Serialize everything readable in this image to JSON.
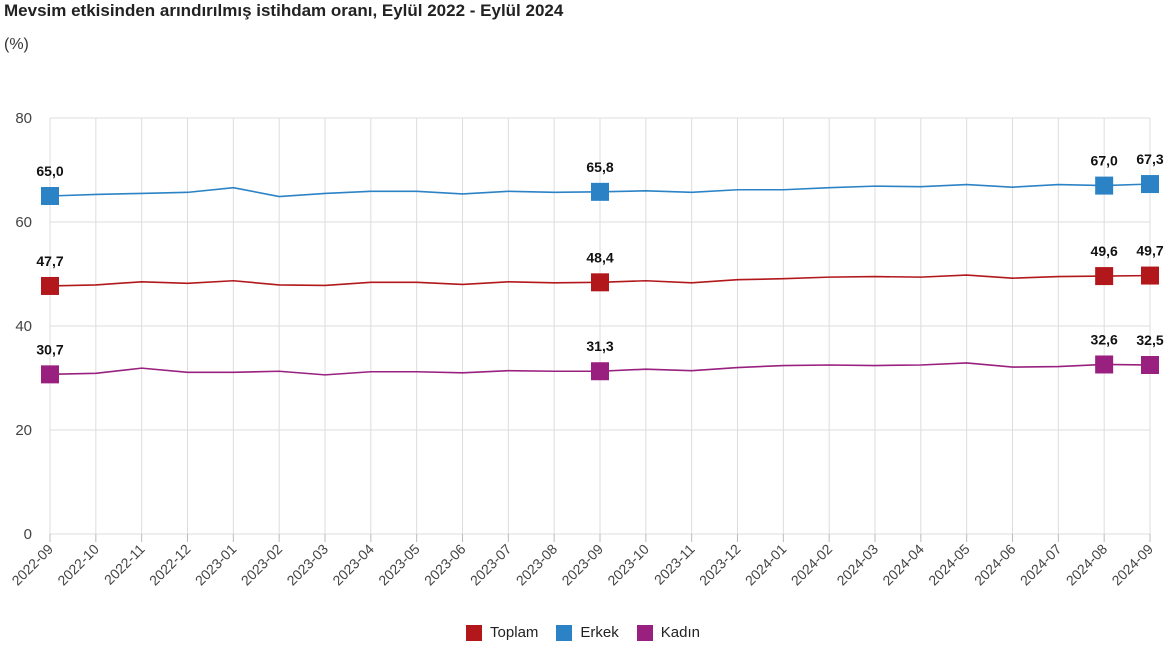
{
  "title": "Mevsim etkisinden arındırılmış istihdam oranı, Eylül 2022 - Eylül 2024",
  "subtitle": "(%)",
  "chart_data": {
    "type": "line",
    "title": "Mevsim etkisinden arındırılmış istihdam oranı, Eylül 2022 - Eylül 2024",
    "ylabel": "(%)",
    "ylim": [
      0,
      80
    ],
    "yticks": [
      0,
      20,
      40,
      60,
      80
    ],
    "grid": true,
    "legend_position": "bottom-center",
    "x": [
      "2022-09",
      "2022-10",
      "2022-11",
      "2022-12",
      "2023-01",
      "2023-02",
      "2023-03",
      "2023-04",
      "2023-05",
      "2023-06",
      "2023-07",
      "2023-08",
      "2023-09",
      "2023-10",
      "2023-11",
      "2023-12",
      "2024-01",
      "2024-02",
      "2024-03",
      "2024-04",
      "2024-05",
      "2024-06",
      "2024-07",
      "2024-08",
      "2024-09"
    ],
    "series": [
      {
        "name": "Toplam",
        "color": "#b2181b",
        "values": [
          47.7,
          47.9,
          48.5,
          48.2,
          48.7,
          47.9,
          47.8,
          48.4,
          48.4,
          48.0,
          48.5,
          48.3,
          48.4,
          48.7,
          48.3,
          48.9,
          49.1,
          49.4,
          49.5,
          49.4,
          49.8,
          49.2,
          49.5,
          49.6,
          49.7
        ],
        "marker_labels": {
          "0": "47,7",
          "12": "48,4",
          "23": "49,6",
          "24": "49,7"
        }
      },
      {
        "name": "Erkek",
        "color": "#2b83c6",
        "values": [
          65.0,
          65.3,
          65.5,
          65.7,
          66.6,
          64.9,
          65.5,
          65.9,
          65.9,
          65.4,
          65.9,
          65.7,
          65.8,
          66.0,
          65.7,
          66.2,
          66.2,
          66.6,
          66.9,
          66.8,
          67.2,
          66.7,
          67.2,
          67.0,
          67.3
        ],
        "marker_labels": {
          "0": "65,0",
          "12": "65,8",
          "23": "67,0",
          "24": "67,3"
        }
      },
      {
        "name": "Kadın",
        "color": "#99207f",
        "values": [
          30.7,
          30.9,
          31.9,
          31.1,
          31.1,
          31.3,
          30.6,
          31.2,
          31.2,
          31.0,
          31.4,
          31.3,
          31.3,
          31.7,
          31.4,
          32.0,
          32.4,
          32.5,
          32.4,
          32.5,
          32.9,
          32.1,
          32.2,
          32.6,
          32.5
        ],
        "marker_labels": {
          "0": "30,7",
          "12": "31,3",
          "23": "32,6",
          "24": "32,5"
        }
      }
    ]
  }
}
